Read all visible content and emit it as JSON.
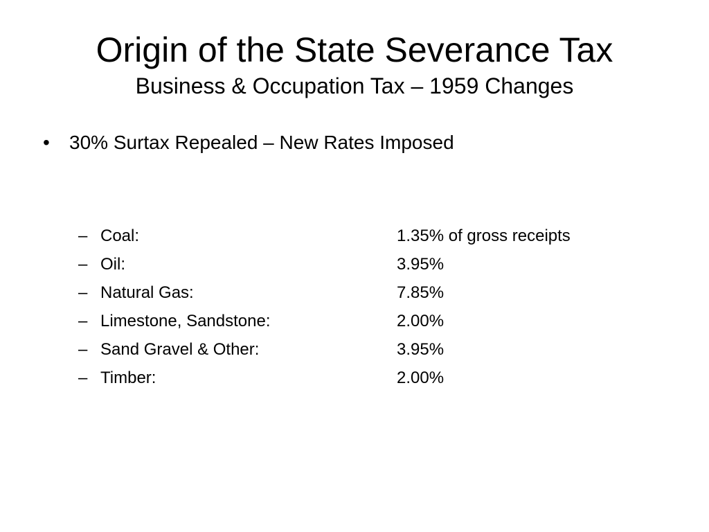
{
  "slide": {
    "title": "Origin of the State Severance Tax",
    "subtitle": "Business & Occupation Tax – 1959 Changes",
    "bullet": {
      "marker": "•",
      "text": "30% Surtax Repealed – New Rates Imposed"
    },
    "rates": [
      {
        "dash": "–",
        "label": "Coal:",
        "value": "1.35% of gross receipts"
      },
      {
        "dash": "–",
        "label": "Oil:",
        "value": "3.95%"
      },
      {
        "dash": "–",
        "label": "Natural Gas:",
        "value": "7.85%"
      },
      {
        "dash": "–",
        "label": "Limestone, Sandstone:",
        "value": "2.00%"
      },
      {
        "dash": "–",
        "label": "Sand Gravel & Other:",
        "value": "3.95%"
      },
      {
        "dash": "–",
        "label": "Timber:",
        "value": "2.00%"
      }
    ]
  }
}
